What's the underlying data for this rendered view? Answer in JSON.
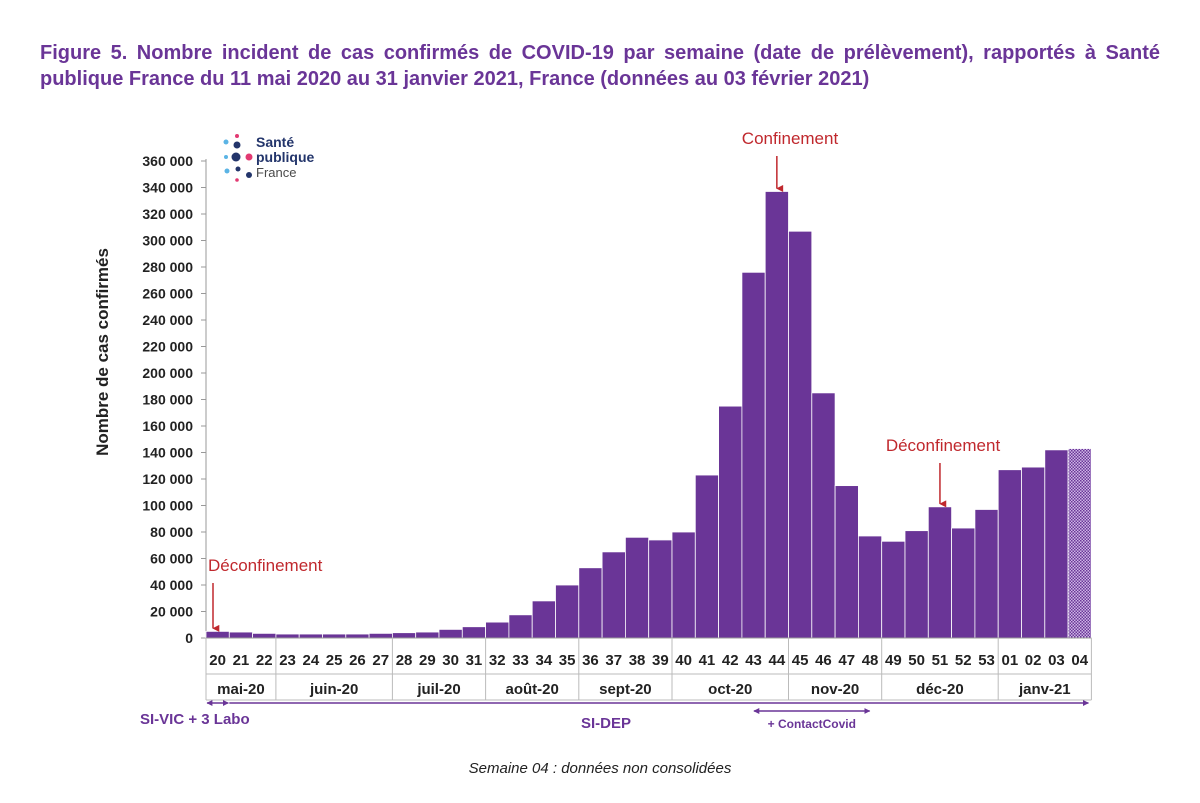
{
  "title": "Figure 5. Nombre incident de cas confirmés de COVID-19 par semaine (date de prélèvement), rapportés à Santé publique France du 11 mai 2020 au 31 janvier 2021, France (données au 03 février 2021)",
  "logo": {
    "line1": "Santé",
    "line2": "publique",
    "line3": "France"
  },
  "footnote": "Semaine 04  : données non consolidées",
  "colors": {
    "bar": "#6a3597",
    "bar_edge": "#ffffff",
    "annotation": "#c0282d",
    "axis": "#222222",
    "title": "#6a3597"
  },
  "chart_data": {
    "type": "bar",
    "ylabel": "Nombre de cas confirmés",
    "ylim": [
      0,
      360000
    ],
    "yticks": [
      0,
      20000,
      40000,
      60000,
      80000,
      100000,
      120000,
      140000,
      160000,
      180000,
      200000,
      220000,
      240000,
      260000,
      280000,
      300000,
      320000,
      340000,
      360000
    ],
    "ytick_labels": [
      "0",
      "20 000",
      "40 000",
      "60 000",
      "80 000",
      "100 000",
      "120 000",
      "140 000",
      "160 000",
      "180 000",
      "200 000",
      "220 000",
      "240 000",
      "260 000",
      "280 000",
      "300 000",
      "320 000",
      "340 000",
      "360 000"
    ],
    "categories": [
      "20",
      "21",
      "22",
      "23",
      "24",
      "25",
      "26",
      "27",
      "28",
      "29",
      "30",
      "31",
      "32",
      "33",
      "34",
      "35",
      "36",
      "37",
      "38",
      "39",
      "40",
      "41",
      "42",
      "43",
      "44",
      "45",
      "46",
      "47",
      "48",
      "49",
      "50",
      "51",
      "52",
      "53",
      "01",
      "02",
      "03",
      "04"
    ],
    "values": [
      5000,
      4500,
      3500,
      3000,
      3000,
      3000,
      3000,
      3500,
      4000,
      4500,
      6500,
      8500,
      12000,
      17500,
      28000,
      40000,
      53000,
      65000,
      76000,
      74000,
      80000,
      123000,
      175000,
      276000,
      337000,
      307000,
      185000,
      115000,
      77000,
      73000,
      81000,
      99000,
      83000,
      97000,
      127000,
      129000,
      142000,
      143000
    ],
    "non_consolidated_index": 37,
    "months": [
      {
        "label": "mai-20",
        "start": 0,
        "end": 2
      },
      {
        "label": "juin-20",
        "start": 3,
        "end": 7
      },
      {
        "label": "juil-20",
        "start": 8,
        "end": 11
      },
      {
        "label": "août-20",
        "start": 12,
        "end": 15
      },
      {
        "label": "sept-20",
        "start": 16,
        "end": 19
      },
      {
        "label": "oct-20",
        "start": 20,
        "end": 24
      },
      {
        "label": "nov-20",
        "start": 25,
        "end": 28
      },
      {
        "label": "déc-20",
        "start": 29,
        "end": 33
      },
      {
        "label": "janv-21",
        "start": 34,
        "end": 37
      }
    ],
    "annotations": [
      {
        "text": "Déconfinement",
        "index": 0,
        "value": 5000
      },
      {
        "text": "Confinement",
        "index": 24,
        "value": 337000
      },
      {
        "text": "Déconfinement",
        "index": 31,
        "value": 99000
      }
    ],
    "systems": [
      {
        "label": "SI-VIC + 3 Labo",
        "start": 0,
        "end": 0
      },
      {
        "label": "SI-DEP",
        "start": 1,
        "end": 37
      },
      {
        "label": "+ ContactCovid",
        "start": 23,
        "end": 28
      }
    ]
  }
}
